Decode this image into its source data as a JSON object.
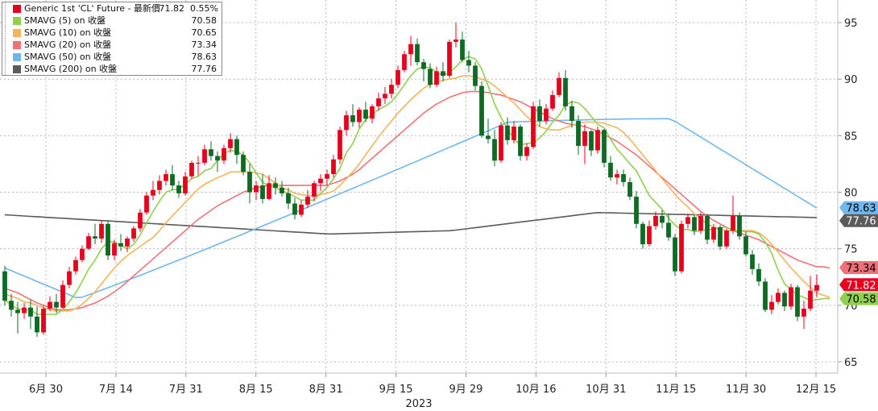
{
  "chart_data": {
    "type": "candlestick",
    "title": "Generic 1st 'CL' Future",
    "year_label": "2023",
    "y_axis": {
      "min": 64,
      "max": 97,
      "ticks": [
        65,
        70,
        75,
        80,
        85,
        90,
        95
      ],
      "side": "right"
    },
    "x_axis": {
      "ticks": [
        "6月 30",
        "7月 14",
        "7月 31",
        "8月 15",
        "8月 31",
        "9月 15",
        "9月 29",
        "10月 16",
        "10月 31",
        "11月 15",
        "11月 30",
        "12月 15"
      ]
    },
    "grid": true,
    "legend_position": "top-left",
    "legend": {
      "header": {
        "label": "Generic 1st 'CL' Future - 最新價",
        "value": "71.82",
        "change": "0.55%",
        "color": "#e8001c"
      },
      "items": [
        {
          "label": "SMAVG (5)  on 收盤",
          "value": "70.58",
          "color": "#8fd14f"
        },
        {
          "label": "SMAVG (10)  on 收盤",
          "value": "70.65",
          "color": "#f5b35a"
        },
        {
          "label": "SMAVG (20)  on 收盤",
          "value": "73.34",
          "color": "#f0707a"
        },
        {
          "label": "SMAVG (50)  on 收盤",
          "value": "78.63",
          "color": "#6fb7ee"
        },
        {
          "label": "SMAVG (200)  on 收盤",
          "value": "77.76",
          "color": "#5a5a5a"
        }
      ]
    },
    "value_tags": [
      {
        "value": 78.63,
        "text": "78.63",
        "color": "#6fb7ee"
      },
      {
        "value": 77.76,
        "text": "77.76",
        "color": "#5a5a5a"
      },
      {
        "value": 73.34,
        "text": "73.34",
        "color": "#f0707a"
      },
      {
        "value": 71.82,
        "text": "71.82",
        "color": "#e8001c"
      },
      {
        "value": 70.58,
        "text": "70.58",
        "color": "#8fd14f"
      }
    ],
    "up_color": "#e8001c",
    "down_color": "#0f6b24",
    "candles": [
      [
        73.0,
        73.5,
        70.0,
        70.4
      ],
      [
        70.4,
        71.0,
        69.0,
        69.6
      ],
      [
        69.6,
        70.3,
        67.5,
        69.3
      ],
      [
        69.3,
        70.2,
        68.8,
        69.8
      ],
      [
        69.8,
        70.5,
        67.9,
        69.0
      ],
      [
        69.0,
        69.9,
        67.2,
        67.6
      ],
      [
        67.6,
        70.0,
        67.4,
        69.7
      ],
      [
        69.7,
        70.8,
        69.5,
        70.3
      ],
      [
        70.3,
        71.0,
        69.3,
        69.8
      ],
      [
        69.8,
        72.2,
        69.7,
        71.8
      ],
      [
        71.8,
        73.4,
        71.5,
        73.0
      ],
      [
        73.0,
        74.3,
        72.7,
        74.0
      ],
      [
        74.0,
        75.3,
        73.8,
        75.0
      ],
      [
        75.0,
        76.4,
        74.9,
        76.1
      ],
      [
        76.1,
        77.2,
        75.4,
        75.9
      ],
      [
        75.9,
        77.5,
        75.5,
        77.2
      ],
      [
        77.2,
        77.5,
        74.0,
        74.4
      ],
      [
        74.4,
        75.8,
        74.0,
        75.5
      ],
      [
        75.5,
        76.3,
        74.8,
        75.2
      ],
      [
        75.2,
        76.1,
        74.7,
        75.9
      ],
      [
        75.9,
        77.0,
        75.6,
        76.8
      ],
      [
        76.8,
        78.5,
        76.5,
        78.2
      ],
      [
        78.2,
        80.0,
        78.0,
        79.7
      ],
      [
        79.7,
        81.0,
        79.3,
        80.2
      ],
      [
        80.2,
        81.5,
        79.8,
        81.0
      ],
      [
        81.0,
        82.0,
        80.6,
        81.6
      ],
      [
        81.6,
        82.4,
        80.2,
        80.6
      ],
      [
        80.6,
        81.0,
        79.5,
        79.9
      ],
      [
        79.9,
        81.8,
        79.7,
        81.4
      ],
      [
        81.4,
        82.8,
        81.2,
        82.6
      ],
      [
        82.6,
        83.2,
        81.5,
        82.6
      ],
      [
        82.6,
        84.2,
        82.4,
        83.8
      ],
      [
        83.8,
        84.5,
        82.8,
        83.2
      ],
      [
        83.2,
        83.6,
        81.8,
        82.8
      ],
      [
        82.8,
        84.2,
        82.5,
        83.9
      ],
      [
        83.9,
        85.2,
        83.5,
        84.7
      ],
      [
        84.7,
        85.0,
        82.5,
        83.3
      ],
      [
        83.3,
        83.6,
        81.5,
        81.8
      ],
      [
        81.8,
        82.5,
        79.0,
        80.0
      ],
      [
        80.0,
        81.0,
        79.3,
        80.6
      ],
      [
        80.6,
        81.6,
        79.0,
        79.4
      ],
      [
        79.4,
        81.5,
        79.3,
        80.8
      ],
      [
        80.8,
        81.3,
        79.8,
        80.4
      ],
      [
        80.4,
        81.0,
        79.6,
        79.9
      ],
      [
        79.9,
        80.4,
        78.5,
        79.0
      ],
      [
        79.0,
        79.5,
        77.6,
        78.0
      ],
      [
        78.0,
        79.3,
        77.8,
        78.9
      ],
      [
        78.9,
        80.2,
        78.6,
        79.6
      ],
      [
        79.6,
        81.0,
        79.2,
        80.8
      ],
      [
        80.8,
        81.6,
        80.1,
        81.2
      ],
      [
        81.2,
        82.0,
        80.6,
        81.6
      ],
      [
        81.6,
        83.3,
        81.3,
        82.9
      ],
      [
        82.9,
        85.8,
        82.5,
        85.5
      ],
      [
        85.5,
        87.2,
        85.0,
        86.8
      ],
      [
        86.8,
        87.8,
        85.8,
        86.2
      ],
      [
        86.2,
        87.5,
        85.7,
        87.3
      ],
      [
        87.3,
        88.0,
        86.2,
        86.5
      ],
      [
        86.5,
        87.8,
        86.1,
        87.6
      ],
      [
        87.6,
        88.8,
        87.2,
        88.3
      ],
      [
        88.3,
        89.3,
        87.8,
        88.7
      ],
      [
        88.7,
        90.0,
        88.3,
        89.5
      ],
      [
        89.5,
        91.2,
        89.2,
        90.8
      ],
      [
        90.8,
        92.5,
        90.6,
        92.2
      ],
      [
        92.2,
        93.8,
        91.2,
        93.1
      ],
      [
        93.1,
        93.6,
        91.2,
        91.5
      ],
      [
        91.5,
        91.8,
        89.8,
        90.9
      ],
      [
        90.9,
        91.4,
        89.2,
        89.5
      ],
      [
        89.5,
        91.1,
        89.3,
        90.7
      ],
      [
        90.7,
        91.5,
        89.8,
        90.3
      ],
      [
        90.3,
        93.5,
        90.1,
        93.3
      ],
      [
        93.3,
        95.0,
        92.8,
        93.5
      ],
      [
        93.5,
        94.2,
        91.5,
        91.7
      ],
      [
        91.7,
        92.5,
        90.6,
        91.2
      ],
      [
        91.2,
        91.5,
        89.0,
        89.4
      ],
      [
        89.4,
        89.8,
        84.8,
        85.0
      ],
      [
        85.0,
        86.5,
        84.3,
        84.7
      ],
      [
        84.7,
        85.5,
        82.3,
        82.8
      ],
      [
        82.8,
        86.2,
        82.6,
        85.9
      ],
      [
        85.9,
        86.6,
        84.2,
        84.6
      ],
      [
        84.6,
        86.3,
        84.3,
        85.8
      ],
      [
        85.8,
        86.0,
        82.8,
        83.2
      ],
      [
        83.2,
        84.3,
        82.8,
        84.0
      ],
      [
        84.0,
        88.0,
        83.8,
        87.6
      ],
      [
        87.6,
        88.2,
        85.8,
        86.3
      ],
      [
        86.3,
        87.8,
        86.0,
        87.4
      ],
      [
        87.4,
        89.0,
        87.2,
        88.6
      ],
      [
        88.6,
        90.6,
        88.4,
        90.1
      ],
      [
        90.1,
        90.8,
        87.2,
        87.6
      ],
      [
        87.6,
        88.1,
        85.7,
        86.3
      ],
      [
        86.3,
        86.8,
        83.3,
        84.1
      ],
      [
        84.1,
        86.0,
        82.5,
        85.4
      ],
      [
        85.4,
        85.5,
        83.2,
        83.7
      ],
      [
        83.7,
        85.8,
        83.4,
        85.5
      ],
      [
        85.5,
        85.6,
        82.2,
        82.6
      ],
      [
        82.6,
        83.2,
        81.0,
        81.3
      ],
      [
        81.3,
        82.0,
        80.7,
        81.6
      ],
      [
        81.6,
        82.0,
        80.5,
        80.9
      ],
      [
        80.9,
        81.3,
        79.3,
        79.6
      ],
      [
        79.6,
        80.1,
        76.8,
        77.2
      ],
      [
        77.2,
        77.4,
        75.0,
        75.4
      ],
      [
        75.4,
        77.5,
        75.2,
        77.0
      ],
      [
        77.0,
        78.3,
        76.7,
        77.9
      ],
      [
        77.9,
        78.4,
        76.8,
        77.3
      ],
      [
        77.3,
        78.0,
        75.7,
        76.0
      ],
      [
        76.0,
        76.3,
        72.6,
        73.0
      ],
      [
        73.0,
        77.5,
        72.8,
        77.2
      ],
      [
        77.2,
        78.1,
        76.8,
        77.8
      ],
      [
        77.8,
        78.0,
        76.2,
        76.6
      ],
      [
        76.6,
        78.2,
        76.3,
        77.9
      ],
      [
        77.9,
        78.1,
        75.4,
        75.8
      ],
      [
        75.8,
        77.2,
        75.5,
        76.9
      ],
      [
        76.9,
        77.1,
        74.9,
        75.2
      ],
      [
        75.2,
        76.8,
        75.0,
        76.6
      ],
      [
        76.6,
        79.7,
        76.3,
        77.9
      ],
      [
        77.9,
        78.2,
        75.8,
        76.1
      ],
      [
        76.1,
        76.5,
        74.3,
        74.5
      ],
      [
        74.5,
        74.9,
        72.7,
        73.2
      ],
      [
        73.2,
        73.7,
        71.7,
        72.1
      ],
      [
        72.1,
        72.4,
        69.4,
        69.6
      ],
      [
        69.6,
        70.9,
        69.2,
        70.3
      ],
      [
        70.3,
        71.5,
        70.1,
        71.1
      ],
      [
        71.1,
        71.3,
        69.5,
        69.9
      ],
      [
        69.9,
        71.9,
        69.6,
        71.6
      ],
      [
        71.6,
        71.8,
        68.6,
        69.0
      ],
      [
        69.0,
        70.4,
        67.9,
        69.7
      ],
      [
        69.7,
        72.6,
        69.5,
        71.3
      ],
      [
        71.3,
        72.7,
        70.7,
        71.8
      ]
    ],
    "sma5": [
      70.5,
      70.0,
      69.7,
      69.6,
      69.6,
      69.2,
      69.2,
      69.2,
      69.2,
      69.6,
      70.3,
      71.1,
      72.1,
      73.2,
      74.0,
      75.0,
      75.6,
      75.6,
      75.3,
      75.0,
      75.4,
      76.2,
      77.3,
      78.3,
      79.2,
      80.0,
      80.2,
      80.3,
      80.7,
      81.2,
      81.4,
      81.9,
      82.1,
      82.8,
      83.4,
      83.7,
      83.6,
      83.3,
      82.6,
      81.7,
      80.9,
      80.5,
      80.4,
      80.1,
      79.9,
      79.6,
      79.3,
      79.3,
      79.3,
      79.9,
      80.4,
      81.2,
      82.1,
      83.5,
      84.3,
      85.6,
      86.4,
      86.9,
      87.3,
      87.6,
      88.0,
      88.7,
      89.5,
      90.3,
      90.9,
      91.1,
      91.0,
      90.6,
      90.3,
      90.6,
      91.1,
      91.7,
      92.0,
      91.8,
      90.9,
      89.4,
      87.8,
      86.6,
      85.6,
      84.7,
      84.2,
      84.3,
      84.4,
      84.8,
      85.4,
      86.2,
      86.8,
      87.7,
      88.0,
      87.9,
      87.4,
      86.7,
      86.0,
      85.7,
      84.7,
      83.8,
      83.2,
      82.5,
      81.9,
      80.8,
      79.7,
      79.1,
      78.5,
      77.7,
      77.1,
      76.7,
      76.7,
      76.5,
      76.6,
      76.7,
      76.7,
      76.9,
      76.9,
      76.6,
      76.6,
      76.5,
      76.5,
      76.3,
      75.6,
      74.6,
      73.1,
      71.9,
      71.4,
      70.9,
      70.7,
      70.4,
      70.5,
      70.6,
      70.6
    ],
    "sma10": [
      71.0,
      70.8,
      70.6,
      70.3,
      70.2,
      70.0,
      69.8,
      69.6,
      69.5,
      69.5,
      69.5,
      69.7,
      70.1,
      70.6,
      71.2,
      71.9,
      72.6,
      73.3,
      73.9,
      74.4,
      74.8,
      75.2,
      75.6,
      76.0,
      76.6,
      77.3,
      77.9,
      78.5,
      79.1,
      79.7,
      80.3,
      80.7,
      81.0,
      81.3,
      81.5,
      81.8,
      81.8,
      81.8,
      81.8,
      81.7,
      81.6,
      81.2,
      80.8,
      80.4,
      80.2,
      79.9,
      79.8,
      79.7,
      79.7,
      79.8,
      79.9,
      80.1,
      80.6,
      81.2,
      81.8,
      82.5,
      83.3,
      84.1,
      84.9,
      85.6,
      86.3,
      87.0,
      87.6,
      88.2,
      88.7,
      89.2,
      89.5,
      89.7,
      89.9,
      90.0,
      90.1,
      90.3,
      90.3,
      90.2,
      90.0,
      89.8,
      89.4,
      88.9,
      88.4,
      87.9,
      87.3,
      86.7,
      86.2,
      85.8,
      85.6,
      85.5,
      85.5,
      85.7,
      85.9,
      86.1,
      86.2,
      86.2,
      86.2,
      86.1,
      85.9,
      85.7,
      85.3,
      84.7,
      84.0,
      83.3,
      82.6,
      81.9,
      81.2,
      80.5,
      79.8,
      79.2,
      78.7,
      78.1,
      77.6,
      77.2,
      76.9,
      76.7,
      76.6,
      76.6,
      76.6,
      76.6,
      76.6,
      76.4,
      76.0,
      75.4,
      74.7,
      74.0,
      73.3,
      72.7,
      72.1,
      71.6,
      71.1,
      70.9,
      70.7
    ],
    "sma20": [
      71.5,
      71.3,
      71.1,
      70.8,
      70.5,
      70.2,
      70.0,
      69.8,
      69.6,
      69.6,
      69.6,
      69.7,
      69.8,
      70.0,
      70.2,
      70.5,
      70.8,
      71.2,
      71.6,
      72.1,
      72.6,
      73.1,
      73.6,
      74.1,
      74.6,
      75.1,
      75.6,
      76.1,
      76.6,
      77.1,
      77.6,
      78.0,
      78.4,
      78.8,
      79.1,
      79.4,
      79.7,
      80.0,
      80.2,
      80.4,
      80.5,
      80.6,
      80.6,
      80.6,
      80.6,
      80.6,
      80.6,
      80.6,
      80.6,
      80.6,
      80.6,
      80.8,
      81.0,
      81.3,
      81.6,
      82.0,
      82.5,
      83.0,
      83.5,
      84.0,
      84.5,
      85.0,
      85.5,
      86.0,
      86.5,
      87.0,
      87.4,
      87.8,
      88.1,
      88.4,
      88.6,
      88.8,
      88.9,
      88.9,
      88.9,
      88.8,
      88.7,
      88.6,
      88.4,
      88.2,
      88.0,
      87.7,
      87.4,
      87.1,
      86.8,
      86.5,
      86.3,
      86.1,
      86.0,
      85.9,
      85.8,
      85.6,
      85.4,
      85.1,
      84.8,
      84.5,
      84.1,
      83.7,
      83.3,
      82.8,
      82.3,
      81.8,
      81.3,
      80.8,
      80.3,
      79.8,
      79.3,
      78.8,
      78.3,
      77.9,
      77.5,
      77.2,
      76.9,
      76.6,
      76.4,
      76.2,
      76.0,
      75.8,
      75.5,
      75.2,
      74.9,
      74.6,
      74.3,
      74.0,
      73.8,
      73.6,
      73.4,
      73.4,
      73.3
    ]
  }
}
